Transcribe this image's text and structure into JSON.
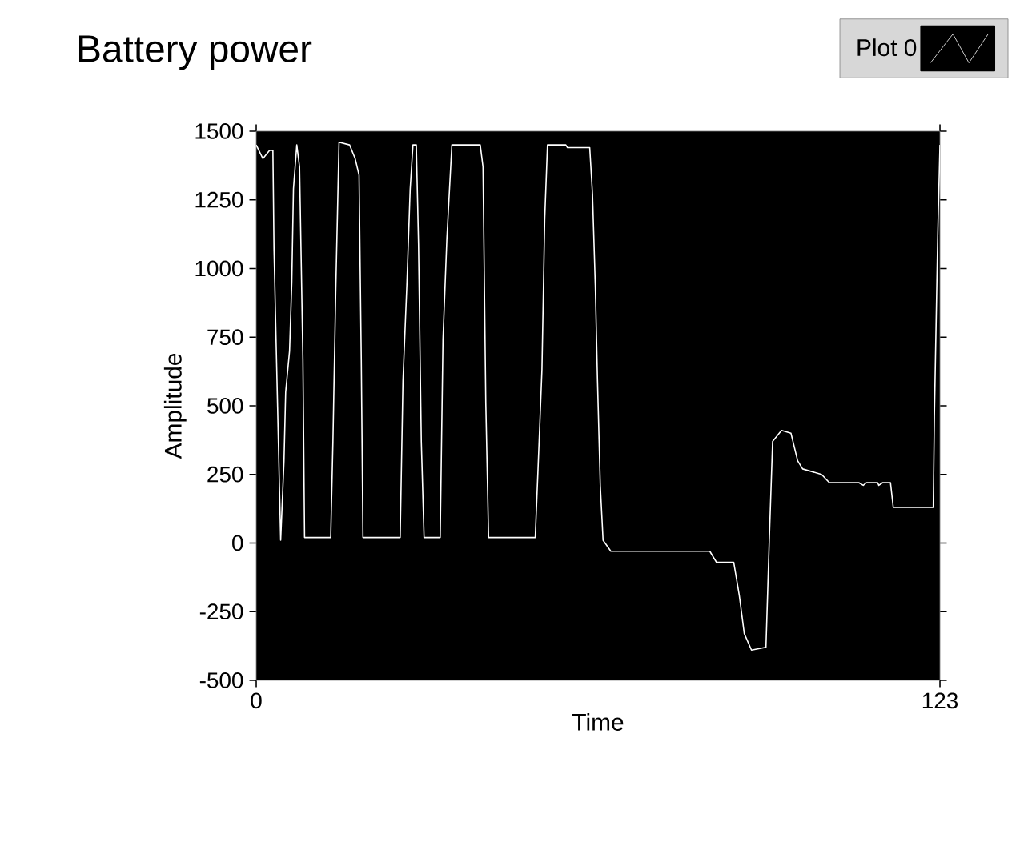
{
  "chart_data": {
    "type": "line",
    "title": "Battery power",
    "xlabel": "Time",
    "ylabel": "Amplitude",
    "xlim": [
      0,
      123
    ],
    "xticks": [
      0,
      123
    ],
    "ylim": [
      -500,
      1500
    ],
    "yticks": [
      -500,
      -250,
      0,
      250,
      500,
      750,
      1000,
      1250,
      1500
    ],
    "grid": false,
    "legend": "top right",
    "marker": "none",
    "line_style": "solid",
    "series": [
      {
        "name": "Plot 0",
        "color": "#ffffff",
        "x": [
          0,
          1.2,
          2.4,
          3,
          3.2,
          4,
          4.4,
          5,
          5.3,
          6,
          6.4,
          6.7,
          7.3,
          7.8,
          8.4,
          8.7,
          13.4,
          13.8,
          14.3,
          14.9,
          16.8,
          17.8,
          18.5,
          18.9,
          19.2,
          25.9,
          26.4,
          27.1,
          27.7,
          28.2,
          28.8,
          29.2,
          29.7,
          30.2,
          33.1,
          33.6,
          34.3,
          35.2,
          40.3,
          40.8,
          41.3,
          41.8,
          50.2,
          50.7,
          51.4,
          51.9,
          52.4,
          55.7,
          56,
          60,
          60.5,
          61,
          61.4,
          61.9,
          62.4,
          63.8,
          81.6,
          82.8,
          85.9,
          86.9,
          87.8,
          89.1,
          91.7,
          92.3,
          92.9,
          94.5,
          96.2,
          97.4,
          98.3,
          101.7,
          103.1,
          108.4,
          109.2,
          109.8,
          111.8,
          112,
          112.7,
          114.1,
          114.6,
          121.8,
          122,
          122.6,
          123
        ],
        "values": [
          1450,
          1400,
          1430,
          1430,
          1070,
          360,
          10,
          300,
          550,
          700,
          950,
          1290,
          1450,
          1370,
          670,
          20,
          20,
          370,
          910,
          1460,
          1450,
          1400,
          1340,
          670,
          20,
          20,
          590,
          940,
          1290,
          1450,
          1450,
          1090,
          370,
          20,
          20,
          740,
          1110,
          1450,
          1450,
          1370,
          510,
          20,
          20,
          270,
          630,
          1180,
          1450,
          1450,
          1440,
          1440,
          1270,
          940,
          590,
          210,
          10,
          -30,
          -30,
          -70,
          -70,
          -190,
          -330,
          -390,
          -380,
          10,
          370,
          410,
          400,
          300,
          270,
          250,
          220,
          220,
          210,
          220,
          220,
          210,
          220,
          220,
          130,
          130,
          460,
          1120,
          1450
        ]
      }
    ]
  }
}
